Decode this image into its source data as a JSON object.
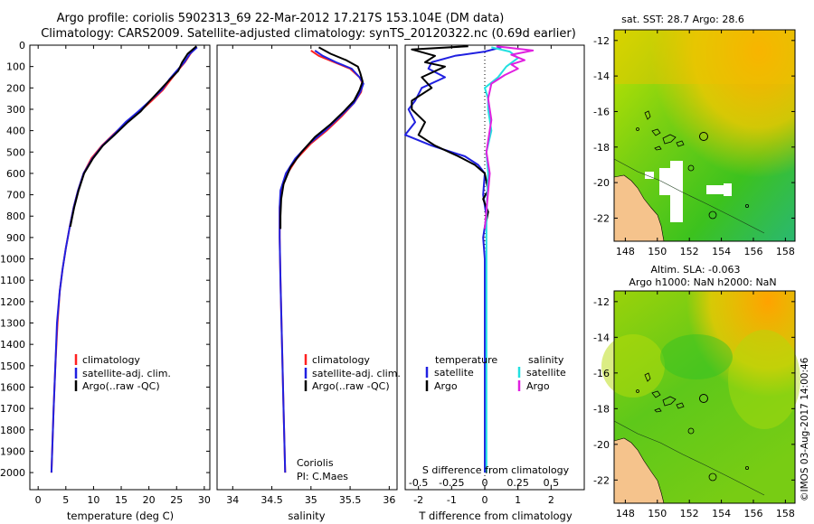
{
  "header": {
    "line1": "Argo profile: coriolis 5902313_69 22-Mar-2012 17.217S 153.104E (DM data)",
    "line2": "Climatology: CARS2009. Satellite-adjusted climatology: synTS_20120322.nc (0.69d earlier)"
  },
  "colors": {
    "climatology": "#ff2020",
    "satellite": "#2020e0",
    "argo": "#000000",
    "salinity_sat": "#22e0e0",
    "salinity_argo": "#e020e0",
    "land": "#f5c38c",
    "cloud": "#ffffff"
  },
  "depth_axis": {
    "ticks": [
      "0",
      "100",
      "200",
      "300",
      "400",
      "500",
      "600",
      "700",
      "800",
      "900",
      "1000",
      "1100",
      "1200",
      "1300",
      "1400",
      "1500",
      "1600",
      "1700",
      "1800",
      "1900",
      "2000"
    ],
    "range": [
      0,
      2080
    ]
  },
  "chart_data": [
    {
      "type": "line",
      "id": "temperature",
      "xlabel": "temperature (deg C)",
      "ylabel": "depth (dbar)",
      "xlim": [
        -1.5,
        31
      ],
      "ylim": [
        2080,
        0
      ],
      "xticks": [
        "0",
        "5",
        "10",
        "15",
        "20",
        "25",
        "30"
      ],
      "xtick_values": [
        0,
        5,
        10,
        15,
        20,
        25,
        30
      ],
      "legend": [
        "climatology",
        "satellite-adj. clim.",
        "Argo(..raw -QC)"
      ],
      "series": [
        {
          "name": "climatology",
          "color": "#ff2020",
          "points": [
            [
              28.4,
              10
            ],
            [
              27.5,
              40
            ],
            [
              26.5,
              80
            ],
            [
              25.2,
              120
            ],
            [
              24,
              160
            ],
            [
              22.5,
              210
            ],
            [
              20.5,
              260
            ],
            [
              18.4,
              310
            ],
            [
              16,
              360
            ],
            [
              13.5,
              420
            ],
            [
              11.5,
              470
            ],
            [
              9.6,
              530
            ],
            [
              8.2,
              600
            ],
            [
              7.2,
              680
            ],
            [
              6.4,
              760
            ],
            [
              5.7,
              850
            ],
            [
              5,
              950
            ],
            [
              4.4,
              1050
            ],
            [
              3.9,
              1150
            ],
            [
              3.5,
              1300
            ],
            [
              3.1,
              1500
            ],
            [
              2.8,
              1700
            ],
            [
              2.6,
              1850
            ],
            [
              2.4,
              2000
            ]
          ]
        },
        {
          "name": "satellite-adj. clim.",
          "color": "#2020e0",
          "points": [
            [
              28.7,
              10
            ],
            [
              27.4,
              40
            ],
            [
              26.4,
              80
            ],
            [
              25,
              120
            ],
            [
              23.7,
              160
            ],
            [
              22.3,
              210
            ],
            [
              20.2,
              260
            ],
            [
              18.1,
              310
            ],
            [
              15.8,
              360
            ],
            [
              13.6,
              420
            ],
            [
              11.6,
              470
            ],
            [
              9.8,
              530
            ],
            [
              8.2,
              600
            ],
            [
              7.2,
              680
            ],
            [
              6.4,
              760
            ],
            [
              5.7,
              850
            ],
            [
              5,
              950
            ],
            [
              4.4,
              1050
            ],
            [
              3.9,
              1150
            ],
            [
              3.4,
              1300
            ],
            [
              3.1,
              1500
            ],
            [
              2.8,
              1700
            ],
            [
              2.6,
              1850
            ],
            [
              2.4,
              2000
            ]
          ]
        },
        {
          "name": "Argo(..raw -QC)",
          "color": "#000000",
          "points": [
            [
              28.6,
              5
            ],
            [
              27,
              40
            ],
            [
              26,
              80
            ],
            [
              25.3,
              120
            ],
            [
              23.8,
              160
            ],
            [
              22,
              210
            ],
            [
              20.2,
              260
            ],
            [
              18.5,
              310
            ],
            [
              16.2,
              360
            ],
            [
              13.8,
              420
            ],
            [
              11.7,
              470
            ],
            [
              9.9,
              530
            ],
            [
              8.3,
              600
            ],
            [
              7.3,
              680
            ],
            [
              6.5,
              760
            ],
            [
              5.8,
              850
            ]
          ]
        }
      ]
    },
    {
      "type": "line",
      "id": "salinity",
      "xlabel": "salinity",
      "ylabel": "depth (dbar)",
      "xlim": [
        33.8,
        36.1
      ],
      "ylim": [
        2080,
        0
      ],
      "xticks": [
        "34",
        "34.5",
        "35",
        "35.5",
        "36"
      ],
      "xtick_values": [
        34,
        34.5,
        35,
        35.5,
        36
      ],
      "legend": [
        "climatology",
        "satellite-adj. clim.",
        "Argo(..raw -QC)"
      ],
      "annotation": [
        "Coriolis",
        "PI: C.Maes"
      ],
      "series": [
        {
          "name": "climatology",
          "color": "#ff2020",
          "points": [
            [
              35.0,
              25
            ],
            [
              35.1,
              50
            ],
            [
              35.3,
              80
            ],
            [
              35.5,
              110
            ],
            [
              35.62,
              150
            ],
            [
              35.66,
              180
            ],
            [
              35.64,
              220
            ],
            [
              35.55,
              270
            ],
            [
              35.4,
              330
            ],
            [
              35.2,
              400
            ],
            [
              35.0,
              460
            ],
            [
              34.82,
              530
            ],
            [
              34.7,
              600
            ],
            [
              34.62,
              680
            ],
            [
              34.6,
              760
            ],
            [
              34.6,
              900
            ],
            [
              34.61,
              1100
            ],
            [
              34.63,
              1400
            ],
            [
              34.65,
              1700
            ],
            [
              34.67,
              2000
            ]
          ]
        },
        {
          "name": "satellite-adj. clim.",
          "color": "#2020e0",
          "points": [
            [
              35.05,
              25
            ],
            [
              35.15,
              50
            ],
            [
              35.32,
              80
            ],
            [
              35.52,
              110
            ],
            [
              35.62,
              150
            ],
            [
              35.67,
              180
            ],
            [
              35.63,
              220
            ],
            [
              35.55,
              270
            ],
            [
              35.38,
              330
            ],
            [
              35.18,
              400
            ],
            [
              34.98,
              460
            ],
            [
              34.8,
              530
            ],
            [
              34.68,
              600
            ],
            [
              34.61,
              680
            ],
            [
              34.6,
              760
            ],
            [
              34.6,
              900
            ],
            [
              34.61,
              1100
            ],
            [
              34.63,
              1400
            ],
            [
              34.65,
              1700
            ],
            [
              34.67,
              2000
            ]
          ]
        },
        {
          "name": "Argo(..raw -QC)",
          "color": "#000000",
          "points": [
            [
              35.1,
              10
            ],
            [
              35.25,
              40
            ],
            [
              35.45,
              70
            ],
            [
              35.6,
              100
            ],
            [
              35.63,
              130
            ],
            [
              35.66,
              170
            ],
            [
              35.62,
              210
            ],
            [
              35.55,
              260
            ],
            [
              35.42,
              310
            ],
            [
              35.25,
              370
            ],
            [
              35.05,
              430
            ],
            [
              34.88,
              500
            ],
            [
              34.74,
              570
            ],
            [
              34.65,
              650
            ],
            [
              34.62,
              720
            ],
            [
              34.61,
              800
            ],
            [
              34.61,
              860
            ]
          ]
        }
      ]
    },
    {
      "type": "line",
      "id": "difference",
      "xlabel": "T difference from climatology",
      "xlabel_top": "S difference from climatology",
      "ylabel": "depth (dbar)",
      "xlim": [
        -2.4,
        3
      ],
      "ylim": [
        2080,
        0
      ],
      "xticks": [
        "-2",
        "-1",
        "0",
        "1",
        "2"
      ],
      "xtick_values": [
        -2,
        -1,
        0,
        1,
        2
      ],
      "sticks": [
        "-0.5",
        "-0.25",
        "0",
        "0.25",
        "0.5"
      ],
      "stick_values": [
        -0.5,
        -0.25,
        0,
        0.25,
        0.5
      ],
      "legend_temperature": [
        "temperature",
        "satellite",
        "Argo"
      ],
      "legend_salinity": [
        "salinity",
        "satellite",
        "Argo"
      ],
      "series": [
        {
          "name": "temperature satellite",
          "color": "#2020e0",
          "points": [
            [
              0.5,
              10
            ],
            [
              0,
              30
            ],
            [
              -0.9,
              50
            ],
            [
              -1.6,
              80
            ],
            [
              -1.7,
              110
            ],
            [
              -1.2,
              150
            ],
            [
              -1.9,
              200
            ],
            [
              -2.1,
              260
            ],
            [
              -2.3,
              300
            ],
            [
              -2.1,
              360
            ],
            [
              -2.4,
              420
            ],
            [
              -1.6,
              470
            ],
            [
              -0.6,
              520
            ],
            [
              -0.2,
              560
            ],
            [
              0,
              600
            ],
            [
              -0.05,
              700
            ],
            [
              0.05,
              800
            ],
            [
              -0.05,
              900
            ],
            [
              0,
              1000
            ],
            [
              0,
              1500
            ],
            [
              0,
              2000
            ]
          ]
        },
        {
          "name": "temperature Argo",
          "color": "#000000",
          "points": [
            [
              -0.5,
              5
            ],
            [
              -2.2,
              20
            ],
            [
              -1.5,
              50
            ],
            [
              -1.8,
              80
            ],
            [
              -1.2,
              100
            ],
            [
              -1.9,
              150
            ],
            [
              -1.6,
              200
            ],
            [
              -2.2,
              260
            ],
            [
              -2.2,
              300
            ],
            [
              -1.8,
              360
            ],
            [
              -2.0,
              420
            ],
            [
              -1.5,
              470
            ],
            [
              -0.8,
              520
            ],
            [
              -0.3,
              560
            ],
            [
              0,
              600
            ],
            [
              0.1,
              680
            ],
            [
              -0.05,
              720
            ],
            [
              0.1,
              780
            ],
            [
              0,
              860
            ]
          ]
        },
        {
          "name": "salinity satellite",
          "color": "#22e0e0",
          "points": [
            [
              0.2,
              10
            ],
            [
              0.75,
              30
            ],
            [
              1.0,
              60
            ],
            [
              0.65,
              100
            ],
            [
              0.4,
              150
            ],
            [
              0,
              200
            ],
            [
              0.1,
              250
            ],
            [
              0.1,
              300
            ],
            [
              0.2,
              400
            ],
            [
              0.05,
              500
            ],
            [
              0.1,
              600
            ],
            [
              0.05,
              800
            ],
            [
              0.05,
              1000
            ],
            [
              0.05,
              1500
            ],
            [
              0.05,
              2000
            ]
          ]
        },
        {
          "name": "salinity Argo",
          "color": "#e020e0",
          "points": [
            [
              0.35,
              5
            ],
            [
              1.45,
              25
            ],
            [
              0.8,
              45
            ],
            [
              1.2,
              70
            ],
            [
              0.8,
              90
            ],
            [
              1.0,
              110
            ],
            [
              0.6,
              140
            ],
            [
              0.2,
              180
            ],
            [
              0.1,
              250
            ],
            [
              0.2,
              350
            ],
            [
              0.05,
              500
            ],
            [
              0.15,
              600
            ],
            [
              0,
              860
            ]
          ]
        }
      ]
    }
  ],
  "maps": {
    "sst": {
      "title": "sat. SST: 28.7  Argo: 28.6",
      "yticks": [
        "-12",
        "-14",
        "-16",
        "-18",
        "-20",
        "-22"
      ],
      "xticks": [
        "148",
        "150",
        "152",
        "154",
        "156",
        "158"
      ]
    },
    "sla": {
      "title_line1": "Altim. SLA: -0.063",
      "title_line2": "Argo h1000: NaN h2000: NaN",
      "yticks": [
        "-12",
        "-14",
        "-16",
        "-18",
        "-20",
        "-22"
      ],
      "xticks": [
        "148",
        "150",
        "152",
        "154",
        "156",
        "158"
      ]
    }
  },
  "footer": {
    "credit": "©IMOS 03-Aug-2017 14:00:46"
  }
}
